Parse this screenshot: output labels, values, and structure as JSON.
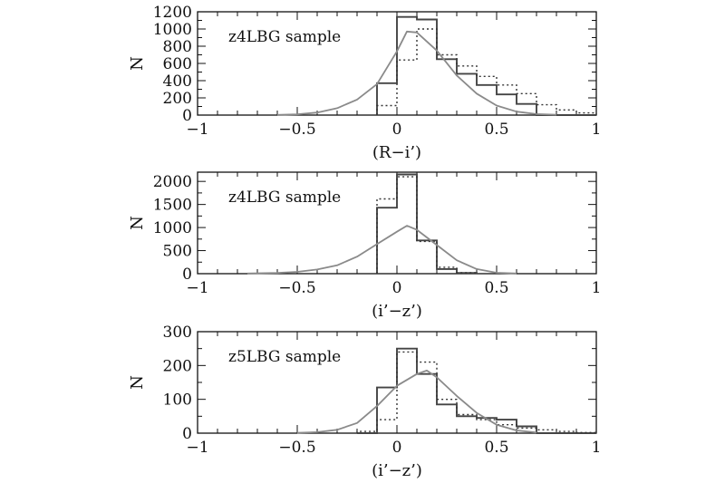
{
  "chart_data": [
    {
      "type": "histogram",
      "label": "z4LBG sample",
      "xlabel": "(R−i’)",
      "ylabel": "N",
      "xlim": [
        -1,
        1
      ],
      "ylim": [
        0,
        1200
      ],
      "xticks": [
        -1,
        -0.5,
        0,
        0.5,
        1
      ],
      "xtick_labels": [
        "−1",
        "−0.5",
        "0",
        "0.5",
        "1"
      ],
      "yticks": [
        0,
        200,
        400,
        600,
        800,
        1000,
        1200
      ],
      "ytick_labels": [
        "0",
        "200",
        "400",
        "600",
        "800",
        "1000",
        "1200"
      ],
      "bin_edges": [
        -0.1,
        0,
        0.1,
        0.2,
        0.3,
        0.4,
        0.5,
        0.6,
        0.7,
        0.8,
        0.9,
        1.0
      ],
      "series": [
        {
          "style": "solid-histogram",
          "values": [
            370,
            1140,
            1110,
            650,
            480,
            350,
            240,
            130,
            0,
            0,
            0
          ]
        },
        {
          "style": "dotted-histogram",
          "values": [
            110,
            640,
            1000,
            700,
            570,
            450,
            350,
            250,
            120,
            60,
            25
          ]
        },
        {
          "style": "model-curve",
          "x": [
            -0.6,
            -0.5,
            -0.4,
            -0.3,
            -0.2,
            -0.1,
            0.0,
            0.05,
            0.1,
            0.2,
            0.3,
            0.4,
            0.5,
            0.6,
            0.7,
            0.8
          ],
          "y": [
            2,
            8,
            30,
            80,
            180,
            360,
            740,
            970,
            960,
            750,
            460,
            250,
            110,
            40,
            12,
            3
          ]
        }
      ]
    },
    {
      "type": "histogram",
      "label": "z4LBG sample",
      "xlabel": "(i’−z’)",
      "ylabel": "N",
      "xlim": [
        -1,
        1
      ],
      "ylim": [
        0,
        2200
      ],
      "xticks": [
        -1,
        -0.5,
        0,
        0.5,
        1
      ],
      "xtick_labels": [
        "−1",
        "−0.5",
        "0",
        "0.5",
        "1"
      ],
      "yticks": [
        0,
        500,
        1000,
        1500,
        2000
      ],
      "ytick_labels": [
        "0",
        "500",
        "1000",
        "1500",
        "2000"
      ],
      "bin_edges": [
        -0.1,
        0.0,
        0.1,
        0.2,
        0.3,
        0.4
      ],
      "series": [
        {
          "style": "solid-histogram",
          "values": [
            1430,
            2150,
            720,
            100,
            15
          ]
        },
        {
          "style": "dotted-histogram",
          "values": [
            1620,
            2100,
            700,
            140,
            20
          ]
        },
        {
          "style": "model-curve",
          "x": [
            -0.75,
            -0.6,
            -0.5,
            -0.4,
            -0.3,
            -0.2,
            -0.1,
            0.0,
            0.05,
            0.1,
            0.2,
            0.3,
            0.4,
            0.5,
            0.6
          ],
          "y": [
            3,
            15,
            40,
            90,
            180,
            370,
            640,
            910,
            1040,
            950,
            620,
            290,
            100,
            20,
            3
          ]
        }
      ]
    },
    {
      "type": "histogram",
      "label": "z5LBG sample",
      "xlabel": "(i’−z’)",
      "ylabel": "N",
      "xlim": [
        -1,
        1
      ],
      "ylim": [
        0,
        300
      ],
      "xticks": [
        -1,
        -0.5,
        0,
        0.5,
        1
      ],
      "xtick_labels": [
        "−1",
        "−0.5",
        "0",
        "0.5",
        "1"
      ],
      "yticks": [
        0,
        100,
        200,
        300
      ],
      "ytick_labels": [
        "0",
        "100",
        "200",
        "300"
      ],
      "bin_edges": [
        -0.2,
        -0.1,
        0,
        0.1,
        0.2,
        0.3,
        0.4,
        0.5,
        0.6,
        0.7,
        0.8,
        0.9,
        1.0
      ],
      "series": [
        {
          "style": "solid-histogram",
          "values": [
            0,
            135,
            250,
            175,
            85,
            50,
            45,
            40,
            20,
            0,
            0,
            0
          ]
        },
        {
          "style": "dotted-histogram",
          "values": [
            5,
            40,
            240,
            210,
            100,
            55,
            40,
            25,
            15,
            10,
            5,
            2
          ]
        },
        {
          "style": "model-curve",
          "x": [
            -0.5,
            -0.4,
            -0.3,
            -0.2,
            -0.1,
            0.0,
            0.1,
            0.15,
            0.2,
            0.3,
            0.4,
            0.5,
            0.6,
            0.7
          ],
          "y": [
            1,
            3,
            10,
            30,
            80,
            140,
            175,
            185,
            165,
            110,
            60,
            25,
            8,
            2
          ]
        }
      ]
    }
  ]
}
